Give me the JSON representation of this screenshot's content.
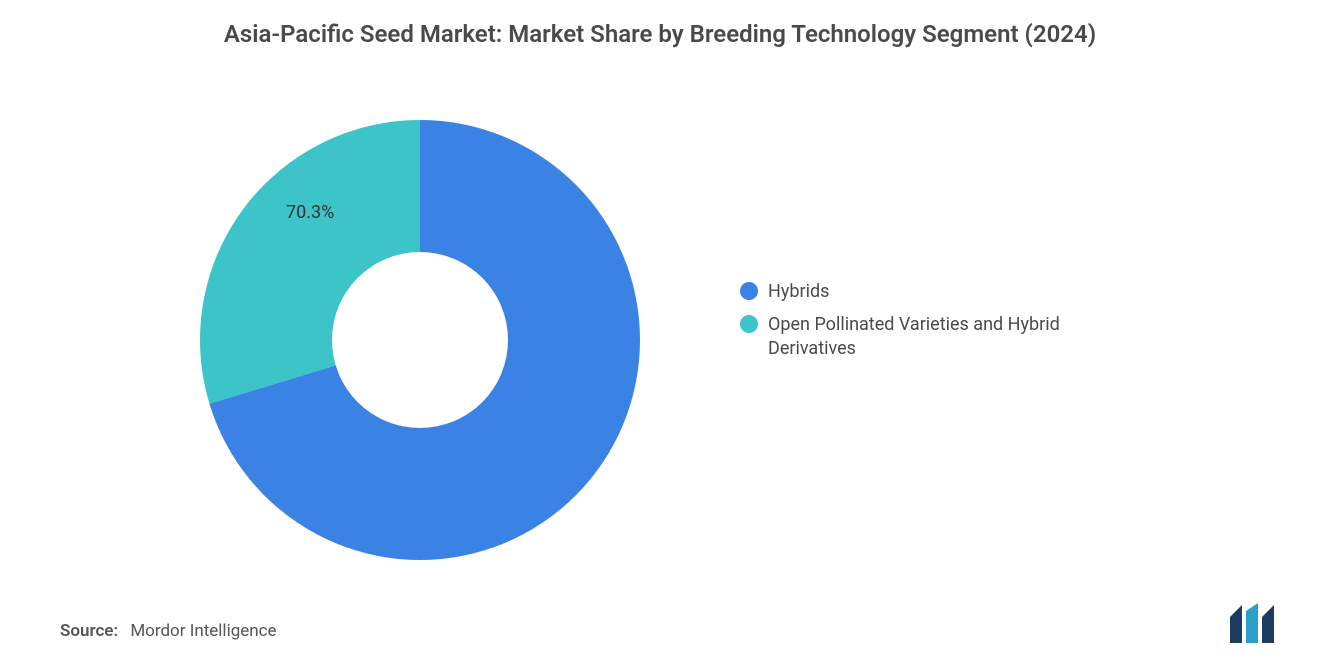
{
  "chart": {
    "type": "donut",
    "title": "Asia-Pacific Seed Market: Market Share by Breeding Technology Segment (2024)",
    "title_fontsize": 24,
    "title_color": "#4a4a4a",
    "background_color": "#ffffff",
    "inner_radius_ratio": 0.4,
    "label_fontsize": 18,
    "label_color": "#333333",
    "slices": [
      {
        "name": "Hybrids",
        "value": 70.3,
        "label": "70.3%",
        "color": "#3a82e4"
      },
      {
        "name": "Open Pollinated Varieties and Hybrid Derivatives",
        "value": 29.7,
        "label": "",
        "color": "#3cc4c8"
      }
    ],
    "start_angle_deg": 0
  },
  "legend": {
    "fontsize": 18,
    "text_color": "#4a4a4a",
    "items": [
      {
        "swatch": "#3a82e4",
        "label": "Hybrids"
      },
      {
        "swatch": "#3cc4c8",
        "label": "Open Pollinated Varieties and Hybrid Derivatives"
      }
    ]
  },
  "source": {
    "label": "Source:",
    "value": "Mordor Intelligence",
    "fontsize": 17,
    "color": "#555555"
  },
  "logo": {
    "bars": [
      "#1b3b5f",
      "#2aa0c8",
      "#1b3b5f"
    ],
    "name": "mordor-intelligence-logo"
  }
}
